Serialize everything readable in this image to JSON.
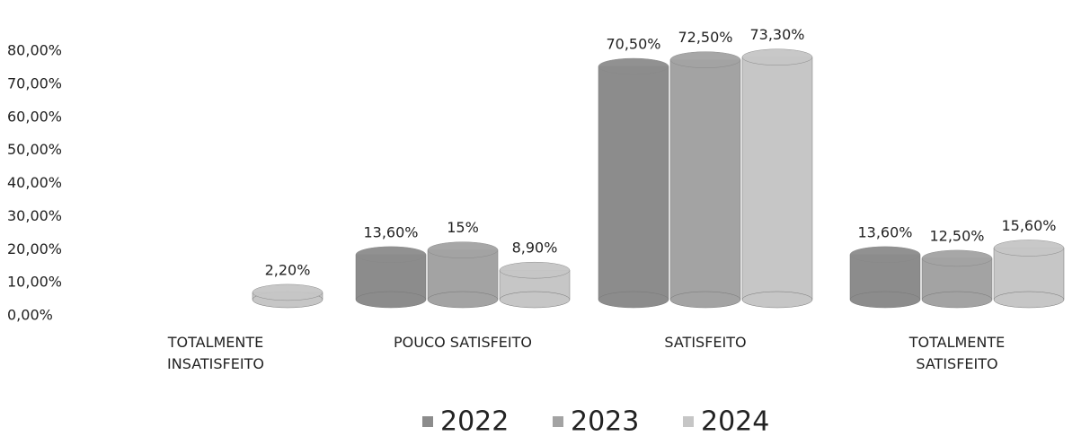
{
  "chart_data": {
    "type": "bar",
    "categories": [
      "TOTALMENTE INSATISFEITO",
      "POUCO SATISFEITO",
      "SATISFEITO",
      "TOTALMENTE SATISFEITO"
    ],
    "series": [
      {
        "name": "2022",
        "color": "#8c8c8c",
        "values": [
          null,
          13.6,
          70.5,
          13.6
        ],
        "value_labels": [
          null,
          "13,60%",
          "70,50%",
          "13,60%"
        ]
      },
      {
        "name": "2023",
        "color": "#a3a3a3",
        "values": [
          null,
          15,
          72.5,
          12.5
        ],
        "value_labels": [
          null,
          "15%",
          "72,50%",
          "12,50%"
        ]
      },
      {
        "name": "2024",
        "color": "#c6c6c6",
        "values": [
          2.2,
          8.9,
          73.3,
          15.6
        ],
        "value_labels": [
          "2,20%",
          "8,90%",
          "73,30%",
          "15,60%"
        ]
      }
    ],
    "ylim": [
      0,
      80
    ],
    "yticks": [
      {
        "value": 0,
        "label": "0,00%"
      },
      {
        "value": 10,
        "label": "10,00%"
      },
      {
        "value": 20,
        "label": "20,00%"
      },
      {
        "value": 30,
        "label": "30,00%"
      },
      {
        "value": 40,
        "label": "40,00%"
      },
      {
        "value": 50,
        "label": "50,00%"
      },
      {
        "value": 60,
        "label": "60,00%"
      },
      {
        "value": 70,
        "label": "70,00%"
      },
      {
        "value": 80,
        "label": "80,00%"
      }
    ],
    "grid": false,
    "legend": "bottom"
  }
}
